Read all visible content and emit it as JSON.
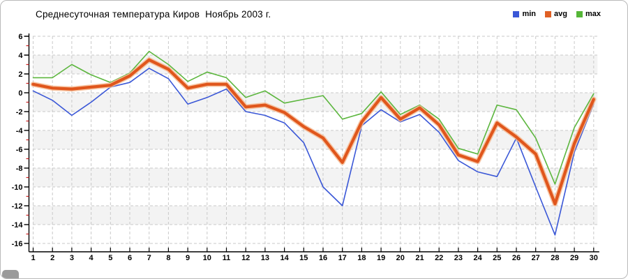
{
  "title": "Среднесуточная температура Киров  Ноябрь 2003 г.",
  "legend": [
    {
      "label": "min",
      "color": "#3a57d7"
    },
    {
      "label": "avg",
      "color": "#e06024"
    },
    {
      "label": "max",
      "color": "#55b637"
    }
  ],
  "colors": {
    "grid": "#c9c9c9",
    "band": "#f3f3f3",
    "axis": "#000000",
    "minor_tick": "#cc2222",
    "avg_halo": "#f5b68c"
  },
  "chart_data": {
    "type": "line",
    "title": "Среднесуточная температура Киров  Ноябрь 2003 г.",
    "x": [
      1,
      2,
      3,
      4,
      5,
      6,
      7,
      8,
      9,
      10,
      11,
      12,
      13,
      14,
      15,
      16,
      17,
      18,
      19,
      20,
      21,
      22,
      23,
      24,
      25,
      26,
      27,
      28,
      29,
      30
    ],
    "series": [
      {
        "name": "min",
        "color": "#3a57d7",
        "width": 1.6,
        "values": [
          0.2,
          -0.8,
          -2.4,
          -1.0,
          0.6,
          1.1,
          2.6,
          1.5,
          -1.2,
          -0.5,
          0.4,
          -2.0,
          -2.4,
          -3.2,
          -5.3,
          -10.0,
          -12.0,
          -3.5,
          -1.8,
          -3.1,
          -2.3,
          -4.2,
          -7.2,
          -8.4,
          -8.9,
          -4.8,
          -10.0,
          -15.1,
          -6.3,
          -1.2
        ]
      },
      {
        "name": "avg",
        "color": "#e0561c",
        "width": 4.2,
        "values": [
          0.9,
          0.5,
          0.4,
          0.6,
          0.8,
          1.8,
          3.5,
          2.5,
          0.5,
          0.9,
          0.9,
          -1.5,
          -1.3,
          -2.1,
          -3.6,
          -4.8,
          -7.4,
          -3.1,
          -0.5,
          -2.8,
          -1.6,
          -3.4,
          -6.6,
          -7.3,
          -3.2,
          -4.7,
          -6.5,
          -11.8,
          -5.4,
          -0.7
        ]
      },
      {
        "name": "max",
        "color": "#5cb63e",
        "width": 1.6,
        "values": [
          1.6,
          1.6,
          3.0,
          1.9,
          1.1,
          2.1,
          4.4,
          3.0,
          1.2,
          2.2,
          1.6,
          -0.5,
          0.2,
          -1.1,
          -0.7,
          -0.3,
          -2.8,
          -2.2,
          0.1,
          -2.3,
          -1.3,
          -2.8,
          -5.9,
          -6.5,
          -1.3,
          -1.8,
          -4.8,
          -9.7,
          -3.7,
          -0.1
        ]
      }
    ],
    "ylim": [
      -16,
      6
    ],
    "ytick_step": 2,
    "grid": "dashed",
    "legend_position": "top-right",
    "y_gray_bands": [
      [
        4,
        2
      ],
      [
        0,
        -2
      ],
      [
        -4,
        -6
      ],
      [
        -8,
        -10
      ],
      [
        -12,
        -14
      ]
    ]
  }
}
